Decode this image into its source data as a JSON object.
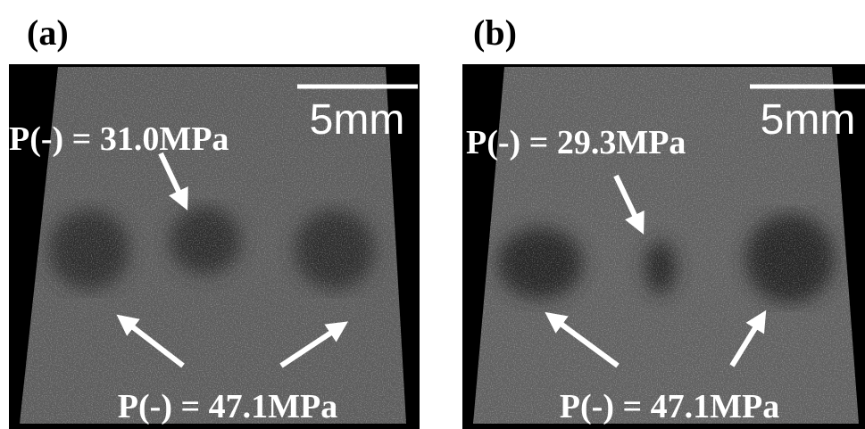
{
  "panels": [
    {
      "label": "(a)",
      "scale_bar": "5mm",
      "annotations": [
        "P(-) = 31.0MPa",
        "P(-) = 47.1MPa"
      ]
    },
    {
      "label": "(b)",
      "scale_bar": "5mm",
      "annotations": [
        "P(-) = 29.3MPa",
        "P(-) = 47.1MPa"
      ]
    }
  ]
}
